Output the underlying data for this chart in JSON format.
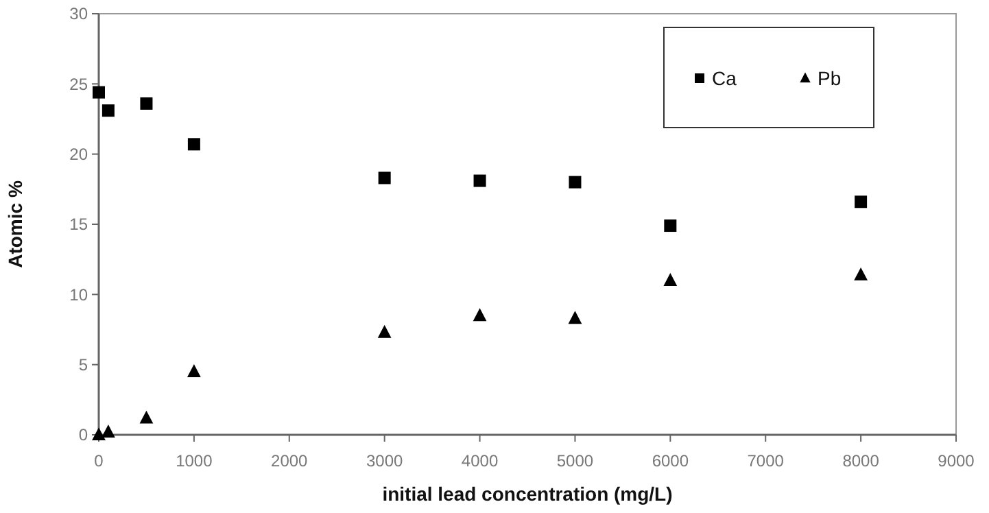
{
  "chart_data": {
    "type": "scatter",
    "xlabel": "initial lead concentration (mg/L)",
    "ylabel": "Atomic %",
    "x": [
      0,
      100,
      500,
      1000,
      3000,
      4000,
      5000,
      6000,
      8000
    ],
    "series": [
      {
        "name": "Ca",
        "color": "#000000",
        "marker": "square",
        "values": [
          24.4,
          23.1,
          23.6,
          20.7,
          18.3,
          18.1,
          18.0,
          14.9,
          16.6
        ]
      },
      {
        "name": "Pb",
        "color": "#000000",
        "marker": "triangle",
        "values": [
          0,
          0.2,
          1.2,
          4.5,
          7.3,
          8.5,
          8.3,
          11.0,
          11.4
        ]
      }
    ],
    "xlim": [
      0,
      9000
    ],
    "xticks": [
      0,
      1000,
      2000,
      3000,
      4000,
      5000,
      6000,
      7000,
      8000,
      9000
    ],
    "ylim": [
      0,
      30
    ],
    "yticks": [
      0,
      5,
      10,
      15,
      20,
      25,
      30
    ],
    "grid": false,
    "legend": "top right"
  }
}
